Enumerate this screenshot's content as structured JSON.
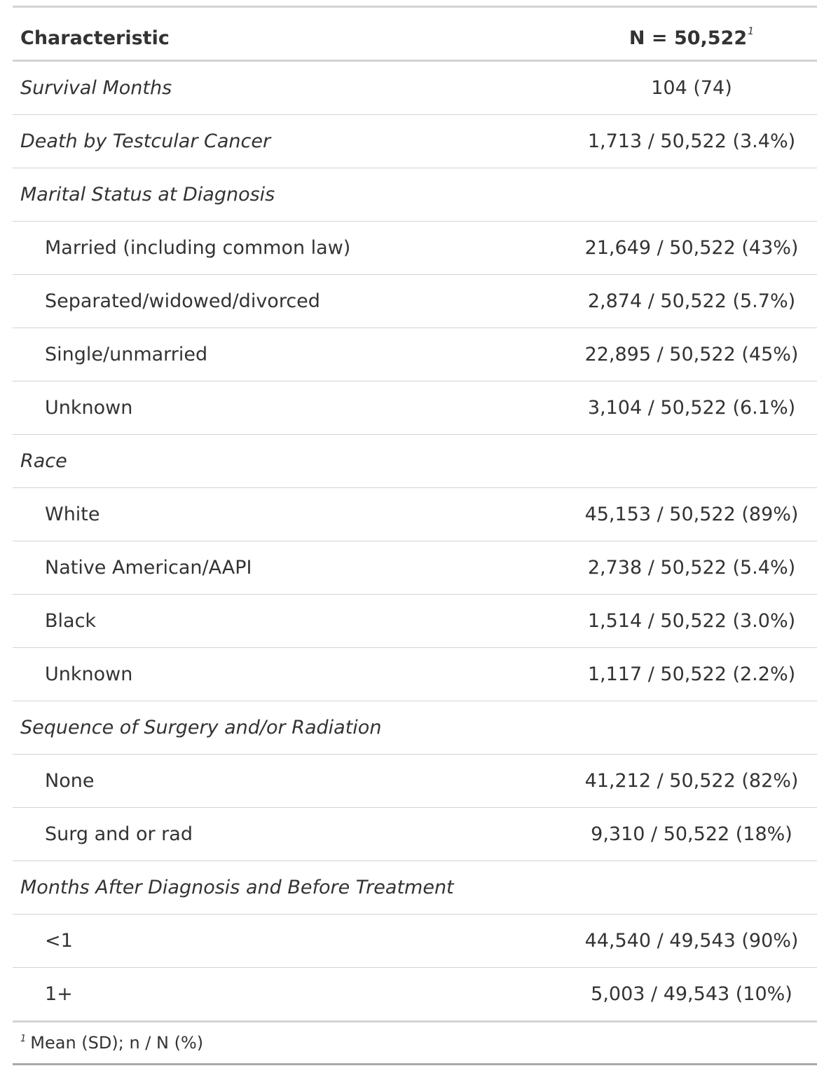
{
  "table": {
    "header": {
      "characteristic": "Characteristic",
      "n_label": "N = 50,522",
      "n_footnote_mark": "1"
    },
    "rows": [
      {
        "type": "variable",
        "label": "Survival Months",
        "value": "104 (74)"
      },
      {
        "type": "variable",
        "label": "Death by Testcular Cancer",
        "value": "1,713 / 50,522 (3.4%)"
      },
      {
        "type": "variable",
        "label": "Marital Status at Diagnosis",
        "value": ""
      },
      {
        "type": "level",
        "label": "Married (including common law)",
        "value": "21,649 / 50,522 (43%)"
      },
      {
        "type": "level",
        "label": "Separated/widowed/divorced",
        "value": "2,874 / 50,522 (5.7%)"
      },
      {
        "type": "level",
        "label": "Single/unmarried",
        "value": "22,895 / 50,522 (45%)"
      },
      {
        "type": "level",
        "label": "Unknown",
        "value": "3,104 / 50,522 (6.1%)"
      },
      {
        "type": "variable",
        "label": "Race",
        "value": ""
      },
      {
        "type": "level",
        "label": "White",
        "value": "45,153 / 50,522 (89%)"
      },
      {
        "type": "level",
        "label": "Native American/AAPI",
        "value": "2,738 / 50,522 (5.4%)"
      },
      {
        "type": "level",
        "label": "Black",
        "value": "1,514 / 50,522 (3.0%)"
      },
      {
        "type": "level",
        "label": "Unknown",
        "value": "1,117 / 50,522 (2.2%)"
      },
      {
        "type": "variable",
        "label": "Sequence of Surgery and/or Radiation",
        "value": ""
      },
      {
        "type": "level",
        "label": "None",
        "value": "41,212 / 50,522 (82%)"
      },
      {
        "type": "level",
        "label": "Surg and or rad",
        "value": "9,310 / 50,522 (18%)"
      },
      {
        "type": "variable",
        "label": "Months After Diagnosis and Before Treatment",
        "value": ""
      },
      {
        "type": "level",
        "label": "<1",
        "value": "44,540 / 49,543 (90%)"
      },
      {
        "type": "level",
        "label": "1+",
        "value": "5,003 / 49,543 (10%)"
      }
    ],
    "footnote": {
      "mark": "1",
      "text": "Mean (SD); n / N (%)"
    }
  }
}
